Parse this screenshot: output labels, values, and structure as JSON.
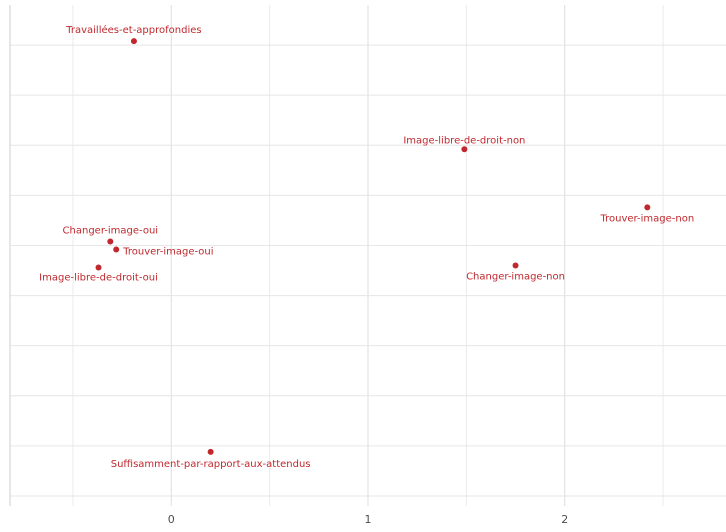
{
  "chart_data": {
    "type": "scatter",
    "title": "",
    "xlabel": "",
    "ylabel": "",
    "xlim": [
      -0.82,
      2.82
    ],
    "ylim": [
      -1.3,
      1.2
    ],
    "x_ticks": [
      0,
      1,
      2
    ],
    "x_tick_labels": [
      "0",
      "1",
      "2"
    ],
    "grid": true,
    "reference_lines": {
      "x": 0,
      "y": 0
    },
    "point_color": "#C0282D",
    "points": [
      {
        "label": "Travaillées-et-approfondies",
        "x": -0.19,
        "y": 1.02
      },
      {
        "label": "Image-libre-de-droit-non",
        "x": 1.49,
        "y": 0.48
      },
      {
        "label": "Trouver-image-non",
        "x": 2.42,
        "y": 0.19
      },
      {
        "label": "Changer-image-oui",
        "x": -0.31,
        "y": 0.02
      },
      {
        "label": "Trouver-image-oui",
        "x": -0.28,
        "y": -0.02
      },
      {
        "label": "Image-libre-de-droit-oui",
        "x": -0.37,
        "y": -0.11
      },
      {
        "label": "Changer-image-non",
        "x": 1.75,
        "y": -0.1
      },
      {
        "label": "Suffisamment-par-rapport-aux-attendus",
        "x": 0.2,
        "y": -1.03
      }
    ]
  }
}
